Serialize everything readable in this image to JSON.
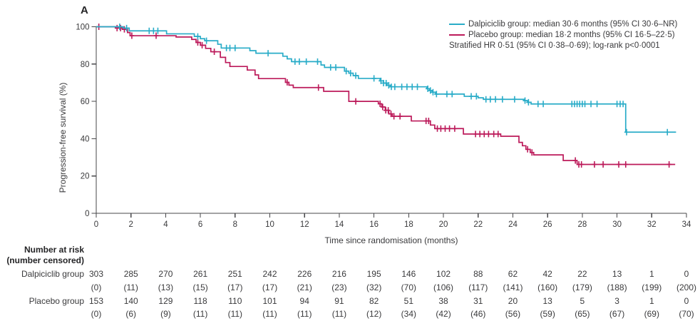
{
  "figure": {
    "panel_label": "A",
    "x_axis": {
      "label": "Time since randomisation (months)",
      "ticks": [
        0,
        2,
        4,
        6,
        8,
        10,
        12,
        14,
        16,
        18,
        20,
        22,
        24,
        26,
        28,
        30,
        32,
        34
      ],
      "min": 0,
      "max": 34
    },
    "y_axis": {
      "label": "Progression-free survival (%)",
      "ticks": [
        0,
        20,
        40,
        60,
        80,
        100
      ],
      "min": 0,
      "max": 100
    },
    "legend": {
      "items": [
        {
          "label": "Dalpiciclib group: median 30·6 months (95% CI 30·6–NR)",
          "color": "#29ACC8",
          "has_swatch": true
        },
        {
          "label": "Placebo group: median 18·2 months (95% CI 16·5–22·5)",
          "color": "#BC1A5A",
          "has_swatch": true
        },
        {
          "label": "Stratified HR 0·51 (95% CI 0·38–0·69); log-rank p<0·0001",
          "color": "",
          "has_swatch": false
        }
      ]
    }
  },
  "chart_data": {
    "type": "line",
    "subtype": "kaplan-meier-step",
    "title": "",
    "xlabel": "Time since randomisation (months)",
    "ylabel": "Progression-free survival (%)",
    "xlim": [
      0,
      34
    ],
    "ylim": [
      0,
      100
    ],
    "grid": false,
    "legend_position": "top-right",
    "annotations": [
      "Stratified HR 0·51 (95% CI 0·38–0·69); log-rank p<0·0001"
    ],
    "series": [
      {
        "name": "Placebo group",
        "median_label": "median 18·2 months (95% CI 16·5–22·5)",
        "color": "#BC1A5A",
        "end_time": 33.35,
        "steps": [
          [
            0,
            100
          ],
          [
            1.1,
            99.3
          ],
          [
            1.5,
            98.6
          ],
          [
            1.8,
            96.9
          ],
          [
            1.95,
            95.2
          ],
          [
            4.6,
            94.5
          ],
          [
            5.5,
            93.2
          ],
          [
            5.75,
            91.6
          ],
          [
            6.0,
            90.1
          ],
          [
            6.3,
            88.4
          ],
          [
            6.6,
            86.6
          ],
          [
            7.15,
            83.6
          ],
          [
            7.45,
            80.8
          ],
          [
            7.7,
            78.7
          ],
          [
            8.7,
            76.8
          ],
          [
            9.15,
            74.2
          ],
          [
            9.35,
            72.2
          ],
          [
            10.9,
            70.2
          ],
          [
            11.1,
            68.7
          ],
          [
            11.35,
            67.4
          ],
          [
            13.1,
            65.4
          ],
          [
            14.55,
            60.0
          ],
          [
            16.25,
            58.7
          ],
          [
            16.45,
            57.0
          ],
          [
            16.65,
            55.2
          ],
          [
            16.85,
            53.3
          ],
          [
            17.05,
            52.0
          ],
          [
            18.15,
            49.5
          ],
          [
            19.25,
            47.3
          ],
          [
            19.5,
            45.4
          ],
          [
            21.15,
            42.5
          ],
          [
            23.3,
            41.3
          ],
          [
            24.35,
            38.0
          ],
          [
            24.55,
            36.2
          ],
          [
            24.75,
            34.3
          ],
          [
            25.0,
            32.6
          ],
          [
            25.2,
            31.3
          ],
          [
            26.9,
            28.3
          ],
          [
            27.7,
            26.2
          ]
        ],
        "censor_times": [
          0.15,
          1.2,
          1.4,
          1.62,
          2.05,
          3.45,
          5.85,
          6.1,
          6.8,
          11.0,
          12.8,
          14.95,
          16.35,
          16.5,
          16.68,
          16.82,
          16.98,
          17.15,
          17.5,
          19.0,
          19.15,
          19.65,
          19.85,
          20.1,
          20.35,
          20.65,
          21.85,
          22.1,
          22.35,
          22.6,
          22.9,
          23.15,
          24.85,
          25.1,
          27.6,
          27.8,
          27.95,
          28.7,
          29.2,
          30.1,
          30.5,
          33.0
        ]
      },
      {
        "name": "Dalpiciclib group",
        "median_label": "median 30·6 months (95% CI 30·6–NR)",
        "color": "#29ACC8",
        "end_time": 33.4,
        "steps": [
          [
            0,
            100
          ],
          [
            1.55,
            99.3
          ],
          [
            1.9,
            97.8
          ],
          [
            4.05,
            96.2
          ],
          [
            5.65,
            94.8
          ],
          [
            6.0,
            93.6
          ],
          [
            6.25,
            92.5
          ],
          [
            7.0,
            90.6
          ],
          [
            7.2,
            88.6
          ],
          [
            8.85,
            87.2
          ],
          [
            9.2,
            85.8
          ],
          [
            10.75,
            84.2
          ],
          [
            11.0,
            82.8
          ],
          [
            11.25,
            81.3
          ],
          [
            12.95,
            79.5
          ],
          [
            13.15,
            78.2
          ],
          [
            14.3,
            76.2
          ],
          [
            14.55,
            75.1
          ],
          [
            14.8,
            73.8
          ],
          [
            15.1,
            72.3
          ],
          [
            16.35,
            71.0
          ],
          [
            16.55,
            69.8
          ],
          [
            16.75,
            68.6
          ],
          [
            16.95,
            67.8
          ],
          [
            19.05,
            66.8
          ],
          [
            19.2,
            65.8
          ],
          [
            19.35,
            64.9
          ],
          [
            19.55,
            63.9
          ],
          [
            21.2,
            62.7
          ],
          [
            22.0,
            61.9
          ],
          [
            22.3,
            61.1
          ],
          [
            24.65,
            60.4
          ],
          [
            24.85,
            59.5
          ],
          [
            25.05,
            58.6
          ],
          [
            30.5,
            43.5
          ]
        ],
        "censor_times": [
          1.35,
          1.75,
          3.05,
          3.3,
          3.55,
          5.85,
          6.35,
          7.5,
          7.7,
          8.0,
          9.9,
          11.45,
          11.7,
          12.1,
          12.75,
          13.5,
          13.8,
          14.4,
          14.65,
          14.95,
          16.0,
          16.4,
          16.55,
          16.7,
          16.85,
          17.0,
          17.2,
          17.6,
          17.9,
          18.2,
          18.5,
          19.1,
          19.25,
          19.4,
          19.6,
          20.2,
          20.5,
          21.6,
          21.9,
          22.45,
          22.7,
          23.0,
          23.4,
          24.1,
          24.7,
          24.9,
          25.45,
          25.75,
          27.4,
          27.55,
          27.7,
          27.85,
          28.0,
          28.15,
          28.5,
          28.85,
          30.0,
          30.18,
          30.35,
          30.55,
          32.9
        ]
      }
    ]
  },
  "risk_table": {
    "header_line1": "Number at risk",
    "header_line2": "(number censored)",
    "times": [
      0,
      2,
      4,
      6,
      8,
      10,
      12,
      14,
      16,
      18,
      20,
      22,
      24,
      26,
      28,
      30,
      32,
      34
    ],
    "rows": [
      {
        "label": "Dalpiciclib group",
        "at_risk": [
          "303",
          "285",
          "270",
          "261",
          "251",
          "242",
          "226",
          "216",
          "195",
          "146",
          "102",
          "88",
          "62",
          "42",
          "22",
          "13",
          "1",
          "0"
        ],
        "censored": [
          "(0)",
          "(11)",
          "(13)",
          "(15)",
          "(17)",
          "(17)",
          "(21)",
          "(23)",
          "(32)",
          "(70)",
          "(106)",
          "(117)",
          "(141)",
          "(160)",
          "(179)",
          "(188)",
          "(199)",
          "(200)"
        ]
      },
      {
        "label": "Placebo group",
        "at_risk": [
          "153",
          "140",
          "129",
          "118",
          "110",
          "101",
          "94",
          "91",
          "82",
          "51",
          "38",
          "31",
          "20",
          "13",
          "5",
          "3",
          "1",
          "0"
        ],
        "censored": [
          "(0)",
          "(6)",
          "(9)",
          "(11)",
          "(11)",
          "(11)",
          "(11)",
          "(11)",
          "(12)",
          "(34)",
          "(42)",
          "(46)",
          "(56)",
          "(59)",
          "(65)",
          "(67)",
          "(69)",
          "(70)"
        ]
      }
    ]
  }
}
